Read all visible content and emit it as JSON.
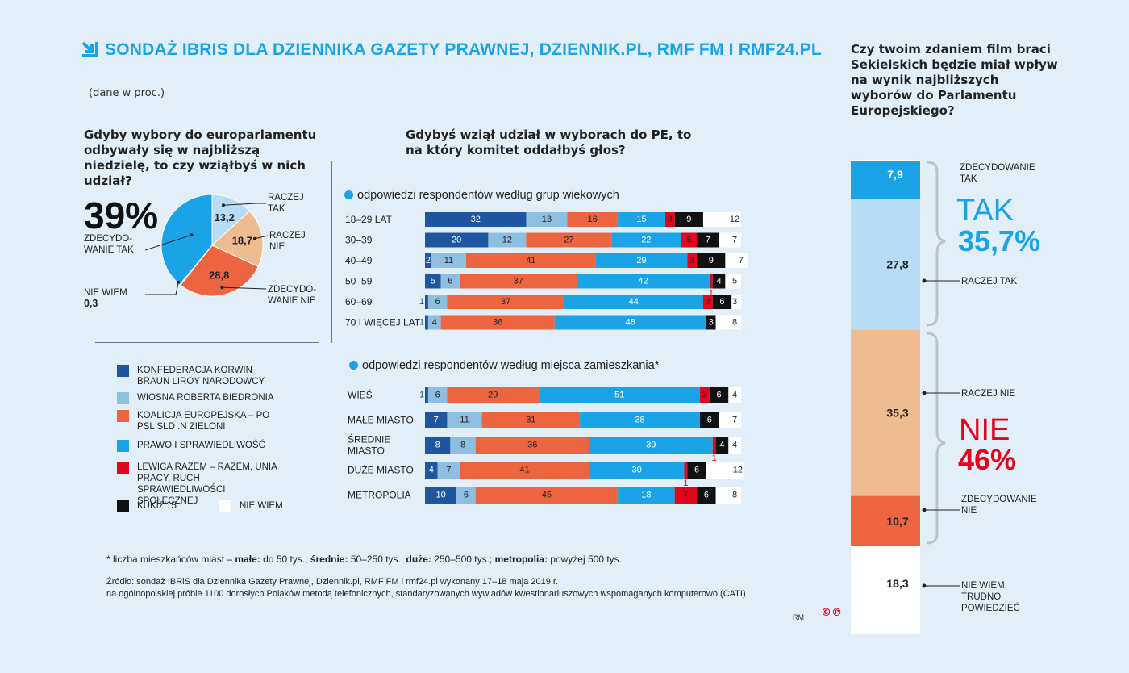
{
  "header": {
    "title": "SONDAŻ IBRIS DLA DZIENNIKA GAZETY PRAWNEJ, DZIENNIK.PL, RMF FM I RMF24.PL",
    "unit": "(dane w proc.)"
  },
  "colors": {
    "konf": "#1e56a0",
    "wiosna": "#8fbfe0",
    "ke": "#ec6540",
    "pis": "#1aa3e6",
    "lewica": "#e3051b",
    "kukiz": "#111111",
    "niewiem": "#ffffff",
    "raczej_tak": "#b6dcf6",
    "raczej_nie": "#efbc92",
    "zdec_nie": "#ec6540",
    "title": "#1aa3e6",
    "red": "#e3051b"
  },
  "questions": {
    "q1": "Gdyby wybory do europarlamentu odbywały się w najbliższą niedzielę, to czy wziąłbyś w nich udział?",
    "q2": "Gdybyś wziął udział w wyborach do PE, to na który komitet oddałbyś głos?",
    "q3": "Czy twoim zdaniem film braci Sekielskich będzie miał wpływ na wynik najbliższych wyborów do Parlamentu Europejskiego?"
  },
  "pie": {
    "big_percent": "39%",
    "labels": {
      "raczej_tak": "RACZEJ TAK",
      "raczej_nie": "RACZEJ NIE",
      "zdec_nie": "ZDECYDO- WANIE NIE",
      "zdec_tak": "ZDECYDO- WANIE TAK",
      "nie_wiem": "NIE WIEM",
      "nie_wiem_value": "0,3"
    }
  },
  "sections": {
    "age": "odpowiedzi respondentów według grup wiekowych",
    "place": "odpowiedzi respondentów według miejsca zamieszkania*"
  },
  "legend": [
    {
      "label": "KONFEDERACJA KORWIN BRAUN LIROY NARODOWCY",
      "color": "#1e56a0"
    },
    {
      "label": "WIOSNA ROBERTA BIEDRONIA",
      "color": "#8fbfe0"
    },
    {
      "label": "KOALICJA EUROPEJSKA – PO PSL SLD .N ZIELONI",
      "color": "#ec6540"
    },
    {
      "label": "PRAWO I SPRAWIEDLIWOŚĆ",
      "color": "#1aa3e6"
    },
    {
      "label": "LEWICA RAZEM – RAZEM, UNIA PRACY, RUCH SPRAWIEDLIWOŚCI SPOŁECZNEJ",
      "color": "#e3051b"
    },
    {
      "label": "KUKIZ'15",
      "color": "#111111"
    },
    {
      "label": "NIE WIEM",
      "color": "#ffffff"
    }
  ],
  "footnote": {
    "prefix": "* liczba mieszkańców miast – ",
    "male_k": "małe:",
    "male_v": " do 50 tys.; ",
    "srednie_k": "średnie:",
    "srednie_v": " 50–250 tys.; ",
    "duze_k": "duże:",
    "duze_v": " 250–500 tys.; ",
    "metro_k": "metropolia:",
    "metro_v": " powyżej 500 tys."
  },
  "source": {
    "line1": "Źródło: sondaż IBRiS dla Dziennika Gazety Prawnej, Dziennik.pl, RMF FM i rmf24.pl wykonany 17–18 maja 2019 r.",
    "line2": "na ogólnopolskiej próbie 1100 dorosłych Polaków metodą telefonicznych, standaryzowanych wywiadów kwestionariuszowych wspomaganych komputerowo (CATI)"
  },
  "credit": {
    "author": "RM",
    "copyright": "©℗"
  },
  "right": {
    "tak_word": "TAK",
    "tak_pct": "35,7%",
    "nie_word": "NIE",
    "nie_pct": "46%",
    "labels": {
      "zdec_tak": "ZDECYDOWANIE TAK",
      "raczej_tak": "RACZEJ TAK",
      "raczej_nie": "RACZEJ NIE",
      "zdec_nie": "ZDECYDOWANIE NIE",
      "nie_wiem": "NIE WIEM, TRUDNO POWIEDZIEĆ"
    }
  },
  "chart_data": [
    {
      "type": "pie",
      "title": "Gdyby wybory do europarlamentu odbywały się w najbliższą niedzielę, to czy wziąłbyś w nich udział?",
      "slices": [
        {
          "name": "zdecydowanie tak",
          "value": 39,
          "label": "39",
          "color": "#1aa3e6"
        },
        {
          "name": "raczej tak",
          "value": 13.2,
          "label": "13,2",
          "color": "#b6dcf6"
        },
        {
          "name": "raczej nie",
          "value": 18.7,
          "label": "18,7",
          "color": "#efbc92"
        },
        {
          "name": "zdecydowanie nie",
          "value": 28.8,
          "label": "28,8",
          "color": "#ec6540"
        },
        {
          "name": "nie wiem",
          "value": 0.3,
          "label": "0,3",
          "color": "#111111"
        }
      ]
    },
    {
      "type": "bar",
      "orientation": "horizontal-stacked",
      "title": "odpowiedzi respondentów według grup wiekowych",
      "series_names": [
        "Konfederacja",
        "Wiosna",
        "Koalicja Europejska",
        "PiS",
        "Lewica Razem",
        "Kukiz'15",
        "Nie wiem"
      ],
      "categories": [
        "18–29 LAT",
        "30–39",
        "40–49",
        "50–59",
        "60–69",
        "70 I WIĘCEJ LAT"
      ],
      "rows": [
        [
          32,
          13,
          16,
          15,
          3,
          9,
          12
        ],
        [
          20,
          12,
          27,
          22,
          5,
          7,
          7
        ],
        [
          2,
          11,
          41,
          29,
          3,
          9,
          7
        ],
        [
          5,
          6,
          37,
          42,
          1,
          4,
          5
        ],
        [
          1,
          6,
          37,
          44,
          3,
          6,
          3
        ],
        [
          1,
          4,
          36,
          48,
          0,
          3,
          8
        ]
      ]
    },
    {
      "type": "bar",
      "orientation": "horizontal-stacked",
      "title": "odpowiedzi respondentów według miejsca zamieszkania*",
      "series_names": [
        "Konfederacja",
        "Wiosna",
        "Koalicja Europejska",
        "PiS",
        "Lewica Razem",
        "Kukiz'15",
        "Nie wiem"
      ],
      "categories": [
        "WIEŚ",
        "MAŁE MIASTO",
        "ŚREDNIE MIASTO",
        "DUŻE MIASTO",
        "METROPOLIA"
      ],
      "rows": [
        [
          1,
          6,
          29,
          51,
          3,
          6,
          4
        ],
        [
          7,
          11,
          31,
          38,
          0,
          6,
          7
        ],
        [
          8,
          8,
          36,
          39,
          1,
          4,
          4
        ],
        [
          4,
          7,
          41,
          30,
          1,
          6,
          12
        ],
        [
          10,
          6,
          45,
          18,
          7,
          6,
          8
        ]
      ]
    },
    {
      "type": "bar",
      "orientation": "vertical-stacked",
      "title": "Czy twoim zdaniem film braci Sekielskich będzie miał wpływ na wynik najbliższych wyborów do Parlamentu Europejskiego?",
      "categories": [
        "zdecydowanie tak",
        "raczej tak",
        "raczej nie",
        "zdecydowanie nie",
        "nie wiem, trudno powiedzieć"
      ],
      "values": [
        7.9,
        27.8,
        35.3,
        10.7,
        18.3
      ],
      "labels": [
        "7,9",
        "27,8",
        "35,3",
        "10,7",
        "18,3"
      ],
      "colors": [
        "#1aa3e6",
        "#b6dcf6",
        "#efbc92",
        "#ec6540",
        "#ffffff"
      ]
    }
  ]
}
